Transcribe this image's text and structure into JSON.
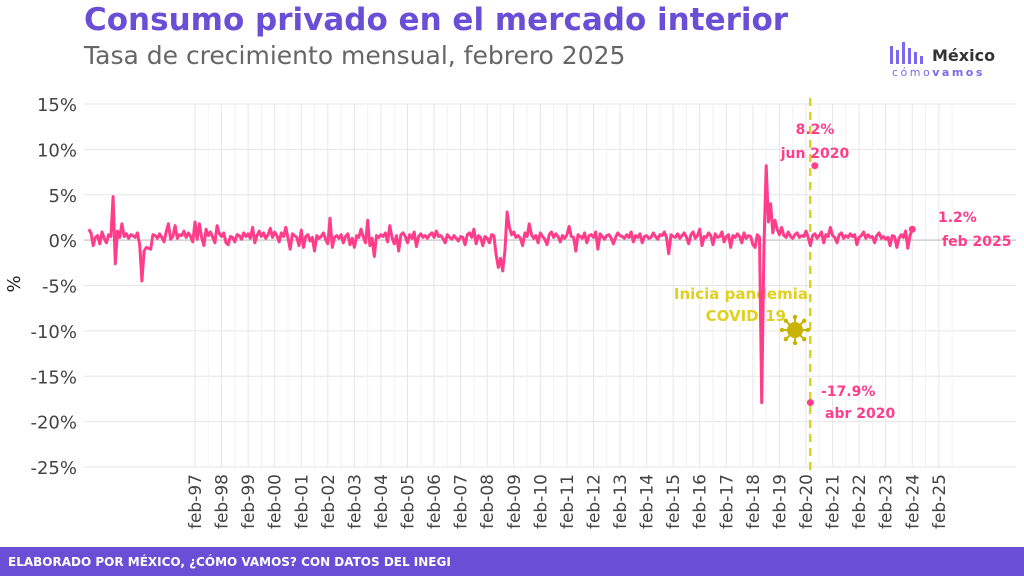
{
  "header": {
    "title": "Consumo privado en el mercado interior",
    "subtitle": "Tasa de crecimiento mensual, febrero 2025"
  },
  "logo": {
    "name": "México",
    "tagline": "cómovamos",
    "tagline_a": "cómo",
    "tagline_b": "vamos"
  },
  "footer": {
    "text": "ELABORADO POR MÉXICO, ¿CÓMO VAMOS? CON DATOS DEL INEGI"
  },
  "colors": {
    "series": "#ff3d8b",
    "annotation": "#e0d020",
    "brand": "#6a4fd6",
    "virus": "#c8b400"
  },
  "chart_data": {
    "type": "line",
    "title": "Consumo privado en el mercado interior",
    "subtitle": "Tasa de crecimiento mensual, febrero 2025",
    "xlabel": "",
    "ylabel": "%",
    "ylim": [
      -25,
      15
    ],
    "yticks": [
      15,
      10,
      5,
      0,
      -5,
      -10,
      -15,
      -20,
      -25
    ],
    "ytick_labels": [
      "15%",
      "10%",
      "5%",
      "0%",
      "-5%",
      "-10%",
      "-15%",
      "-20%",
      "-25%"
    ],
    "xtick_labels": [
      "feb-97",
      "feb-98",
      "feb-99",
      "feb-00",
      "feb-01",
      "feb-02",
      "feb-03",
      "feb-04",
      "feb-05",
      "feb-06",
      "feb-07",
      "feb-08",
      "feb-09",
      "feb-10",
      "feb-11",
      "feb-12",
      "feb-13",
      "feb-14",
      "feb-15",
      "feb-16",
      "feb-17",
      "feb-18",
      "feb-19",
      "feb-20",
      "feb-21",
      "feb-22",
      "feb-23",
      "feb-24",
      "feb-25"
    ],
    "grid": true,
    "series": [
      {
        "start": "1993-02",
        "frequency": "monthly",
        "values": [
          1.2,
          0.8,
          -0.6,
          0.3,
          0.5,
          -0.4,
          0.9,
          0.2,
          -0.3,
          0.6,
          0.4,
          4.8,
          -2.6,
          1.0,
          0.3,
          1.8,
          0.4,
          0.7,
          0.2,
          0.6,
          0.5,
          0.3,
          0.8,
          -0.5,
          -4.5,
          -1.2,
          -0.8,
          -0.9,
          -1.0,
          0.6,
          0.5,
          0.2,
          0.7,
          0.3,
          -0.2,
          0.9,
          1.8,
          0.1,
          0.4,
          1.6,
          0.2,
          0.6,
          0.5,
          1.0,
          0.3,
          0.8,
          0.4,
          -0.2,
          2.0,
          0.1,
          1.8,
          0.3,
          -0.6,
          1.2,
          0.5,
          0.9,
          0.3,
          -0.3,
          1.6,
          0.7,
          0.4,
          0.8,
          -0.3,
          -0.5,
          0.4,
          0.3,
          -0.2,
          0.6,
          0.5,
          0.1,
          0.8,
          0.4,
          0.7,
          0.2,
          1.4,
          -0.3,
          0.5,
          1.0,
          0.4,
          0.8,
          0.2,
          0.6,
          1.3,
          0.3,
          0.9,
          0.5,
          -0.2,
          0.8,
          0.4,
          1.4,
          0.2,
          -1.0,
          0.7,
          0.5,
          0.3,
          -0.6,
          1.1,
          -0.8,
          0.4,
          0.6,
          -0.1,
          0.3,
          -1.2,
          0.5,
          0.2,
          0.4,
          0.8,
          0.1,
          -0.4,
          2.4,
          -0.8,
          0.3,
          0.5,
          0.2,
          0.6,
          -0.3,
          0.4,
          0.7,
          -0.5,
          0.2,
          -0.8,
          0.5,
          0.3,
          1.2,
          0.4,
          -0.3,
          2.2,
          -0.6,
          0.2,
          -1.8,
          0.5,
          0.3,
          0.6,
          0.4,
          0.8,
          -0.2,
          1.6,
          0.3,
          -0.4,
          0.5,
          -1.2,
          0.6,
          0.8,
          0.4,
          -0.3,
          0.6,
          0.2,
          0.9,
          -0.7,
          0.4,
          0.7,
          0.3,
          0.5,
          0.2,
          0.6,
          0.8,
          0.3,
          1.0,
          0.4,
          0.5,
          0.2,
          -0.3,
          0.6,
          0.3,
          0.1,
          0.5,
          0.2,
          -0.1,
          0.4,
          0.3,
          -0.5,
          0.6,
          0.8,
          0.3,
          1.2,
          -0.4,
          0.5,
          0.3,
          -0.6,
          0.4,
          0.2,
          -0.3,
          0.6,
          0.5,
          -1.6,
          -3.0,
          -2.0,
          -3.4,
          -1.2,
          3.1,
          1.4,
          0.6,
          0.9,
          0.3,
          0.5,
          0.2,
          -0.6,
          0.8,
          0.4,
          1.8,
          0.6,
          0.2,
          0.5,
          -0.3,
          0.8,
          0.4,
          0.1,
          -0.5,
          0.6,
          0.9,
          0.3,
          0.7,
          0.4,
          -0.2,
          0.5,
          0.2,
          0.6,
          1.5,
          0.4,
          0.3,
          -1.2,
          0.6,
          0.4,
          0.2,
          0.8,
          -0.3,
          0.5,
          0.6,
          0.3,
          0.9,
          -1.0,
          0.7,
          0.4,
          0.1,
          0.5,
          0.6,
          0.2,
          -0.4,
          0.3,
          0.8,
          0.5,
          0.4,
          0.2,
          0.6,
          0.3,
          0.9,
          -0.2,
          0.5,
          0.3,
          0.7,
          -0.3,
          0.4,
          0.5,
          0.2,
          0.3,
          0.8,
          0.4,
          0.1,
          0.6,
          0.5,
          0.9,
          0.3,
          -1.5,
          0.6,
          0.4,
          0.3,
          0.7,
          0.2,
          0.5,
          0.8,
          0.3,
          -0.4,
          0.6,
          0.9,
          0.2,
          0.5,
          1.2,
          -0.6,
          0.4,
          0.3,
          0.8,
          0.5,
          -0.5,
          0.7,
          0.3,
          0.4,
          0.9,
          -0.2,
          0.4,
          0.6,
          -0.8,
          0.5,
          0.3,
          0.7,
          0.4,
          -0.3,
          0.8,
          0.2,
          0.5,
          0.4,
          -0.5,
          -0.8,
          0.6,
          0.3,
          -17.9,
          -1.0,
          8.2,
          2.0,
          4.0,
          0.8,
          2.2,
          1.2,
          0.6,
          1.4,
          0.5,
          0.3,
          0.9,
          0.4,
          0.2,
          0.6,
          0.8,
          0.3,
          0.5,
          0.4,
          1.0,
          0.3,
          -0.6,
          0.5,
          0.7,
          0.2,
          0.5,
          0.9,
          -0.3,
          0.6,
          0.4,
          1.4,
          0.5,
          0.3,
          -0.3,
          0.6,
          0.8,
          0.2,
          0.5,
          0.3,
          0.7,
          0.4,
          0.6,
          -0.5,
          0.3,
          0.5,
          0.9,
          0.2,
          0.6,
          0.3,
          0.4,
          -0.3,
          0.5,
          0.8,
          0.2,
          0.4,
          0.1,
          0.3,
          -0.6,
          0.5,
          0.4,
          -0.8,
          0.2,
          0.6,
          0.3,
          1.0,
          -0.9,
          0.5,
          1.2
        ]
      }
    ],
    "annotations": [
      {
        "value": "8.2%",
        "date": "jun 2020",
        "y": 8.2
      },
      {
        "value": "-17.9%",
        "date": "abr 2020",
        "y": -17.9
      },
      {
        "value": "1.2%",
        "date": "feb 2025",
        "y": 1.2
      }
    ],
    "event": {
      "line1": "Inicia pandemia",
      "line2": "COVID-19",
      "date": "2020-03"
    }
  }
}
